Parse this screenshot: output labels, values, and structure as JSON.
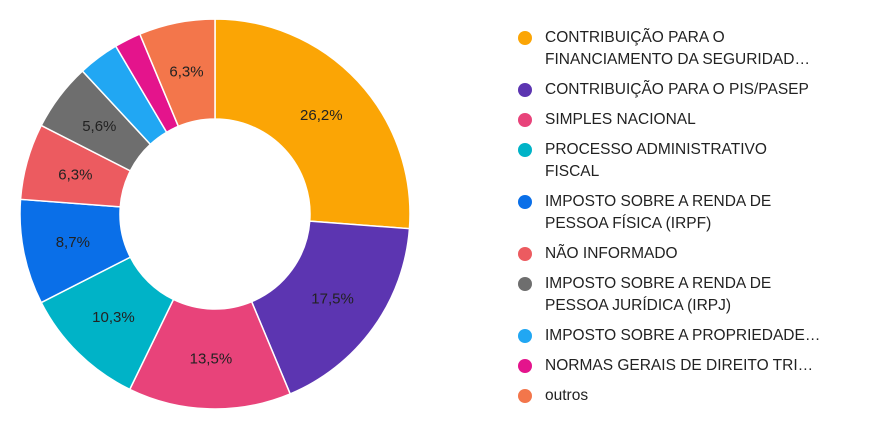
{
  "chart_data": {
    "type": "pie",
    "donut": true,
    "legend_position": "right",
    "slices": [
      {
        "lines": [
          "CONTRIBUIÇÃO PARA O",
          "FINANCIAMENTO DA SEGURIDAD…"
        ],
        "value": 26.2,
        "label": "26,2%",
        "color": "#FBA505"
      },
      {
        "lines": [
          "CONTRIBUIÇÃO PARA O PIS/PASEP"
        ],
        "value": 17.5,
        "label": "17,5%",
        "color": "#5C35B1"
      },
      {
        "lines": [
          "SIMPLES NACIONAL"
        ],
        "value": 13.5,
        "label": "13,5%",
        "color": "#E8437A"
      },
      {
        "lines": [
          "PROCESSO ADMINISTRATIVO",
          "FISCAL"
        ],
        "value": 10.3,
        "label": "10,3%",
        "color": "#00B3C7"
      },
      {
        "lines": [
          "IMPOSTO SOBRE A RENDA DE",
          "PESSOA FÍSICA (IRPF)"
        ],
        "value": 8.7,
        "label": "8,7%",
        "color": "#0A6FE8"
      },
      {
        "lines": [
          "NÃO INFORMADO"
        ],
        "value": 6.3,
        "label": "6,3%",
        "color": "#EC5B60"
      },
      {
        "lines": [
          "IMPOSTO SOBRE A RENDA DE",
          "PESSOA JURÍDICA (IRPJ)"
        ],
        "value": 5.6,
        "label": "5,6%",
        "color": "#6E6E6E"
      },
      {
        "lines": [
          "IMPOSTO SOBRE A PROPRIEDADE…"
        ],
        "value": 3.4,
        "label": "",
        "color": "#21A7F3"
      },
      {
        "lines": [
          "NORMAS GERAIS DE DIREITO TRI…"
        ],
        "value": 2.2,
        "label": "",
        "color": "#E4148C"
      },
      {
        "lines": [
          "outros"
        ],
        "value": 6.3,
        "label": "6,3%",
        "color": "#F3764B"
      }
    ]
  }
}
